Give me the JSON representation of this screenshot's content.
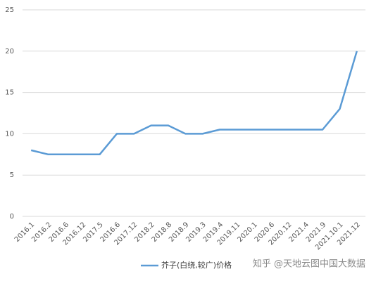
{
  "chart_data": {
    "type": "line",
    "categories": [
      "2016.1",
      "2016.2",
      "2016.6",
      "2016.12",
      "2017.5",
      "2016.6",
      "2017.12",
      "2018.2",
      "2018.8",
      "2018.9",
      "2019.3",
      "2019.4",
      "2019.11",
      "2020.1",
      "2020.6",
      "2020.12",
      "2021.4",
      "2021.9",
      "2021.10.1",
      "2021.12"
    ],
    "series": [
      {
        "name": "芥子(白绕,较广)价格",
        "color": "#5b9bd5",
        "values": [
          8,
          7.5,
          7.5,
          7.5,
          7.5,
          10,
          10,
          11,
          11,
          10,
          10,
          10.5,
          10.5,
          10.5,
          10.5,
          10.5,
          10.5,
          10.5,
          13,
          20
        ]
      }
    ],
    "ylim": [
      0,
      25
    ],
    "yticks": [
      0,
      5,
      10,
      15,
      20,
      25
    ],
    "grid": true,
    "legend": "bottom",
    "watermark": "知乎 @天地云图中国大数据"
  }
}
